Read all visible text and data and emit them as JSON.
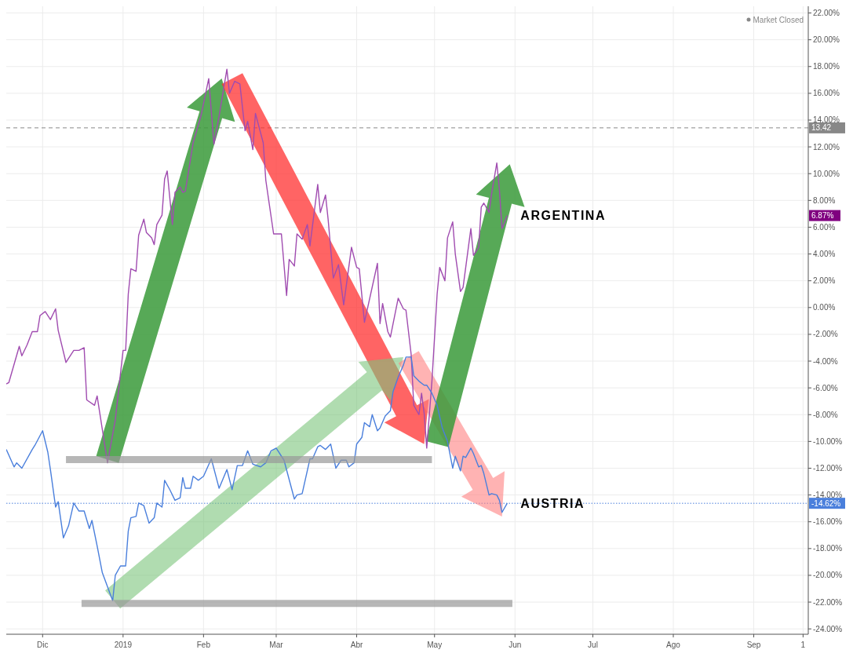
{
  "chart_data": {
    "type": "line",
    "grid": true,
    "marker": "none",
    "xlim": [
      "2018-11-17",
      "2019-09-22"
    ],
    "xticks": [
      {
        "value": "2018-12-01",
        "label": "Dic"
      },
      {
        "value": "2019-01-01",
        "label": "2019"
      },
      {
        "value": "2019-02-01",
        "label": "Feb"
      },
      {
        "value": "2019-03-01",
        "label": "Mar"
      },
      {
        "value": "2019-04-01",
        "label": "Abr"
      },
      {
        "value": "2019-05-01",
        "label": "May"
      },
      {
        "value": "2019-06-01",
        "label": "Jun"
      },
      {
        "value": "2019-07-01",
        "label": "Jul"
      },
      {
        "value": "2019-08-01",
        "label": "Ago"
      },
      {
        "value": "2019-09-01",
        "label": "Sep"
      },
      {
        "value": "2019-09-20",
        "label": "1"
      }
    ],
    "ylim": [
      -24.4,
      22.5
    ],
    "yticks": [
      {
        "value": 22,
        "label": "22.00%"
      },
      {
        "value": 20,
        "label": "20.00%"
      },
      {
        "value": 18,
        "label": "18.00%"
      },
      {
        "value": 16,
        "label": "16.00%"
      },
      {
        "value": 14,
        "label": "14.00%"
      },
      {
        "value": 12,
        "label": "12.00%"
      },
      {
        "value": 10,
        "label": "10.00%"
      },
      {
        "value": 8,
        "label": "8.00%"
      },
      {
        "value": 6,
        "label": "6.00%"
      },
      {
        "value": 4,
        "label": "4.00%"
      },
      {
        "value": 2,
        "label": "2.00%"
      },
      {
        "value": 0,
        "label": "0.00%"
      },
      {
        "value": -2,
        "label": "-2.00%"
      },
      {
        "value": -4,
        "label": "-4.00%"
      },
      {
        "value": -6,
        "label": "-6.00%"
      },
      {
        "value": -8,
        "label": "-8.00%"
      },
      {
        "value": -10,
        "label": "-10.00%"
      },
      {
        "value": -12,
        "label": "-12.00%"
      },
      {
        "value": -14,
        "label": "-14.00%"
      },
      {
        "value": -16,
        "label": "-16.00%"
      },
      {
        "value": -18,
        "label": "-18.00%"
      },
      {
        "value": -20,
        "label": "-20.00%"
      },
      {
        "value": -22,
        "label": "-22.00%"
      },
      {
        "value": -24,
        "label": "-24.00%"
      }
    ],
    "series": [
      {
        "name": "ARGENTINA",
        "color": "#a04cb0",
        "x": [
          "2018-11-17",
          "2018-11-18",
          "2018-11-22",
          "2018-11-23",
          "2018-11-25",
          "2018-11-27",
          "2018-11-29",
          "2018-11-30",
          "2018-12-02",
          "2018-12-04",
          "2018-12-06",
          "2018-12-07",
          "2018-12-10",
          "2018-12-13",
          "2018-12-15",
          "2018-12-17",
          "2018-12-18",
          "2018-12-21",
          "2018-12-22",
          "2018-12-26",
          "2018-12-29",
          "2019-01-01",
          "2019-01-02",
          "2019-01-03",
          "2019-01-04",
          "2019-01-06",
          "2019-01-07",
          "2019-01-09",
          "2019-01-10",
          "2019-01-12",
          "2019-01-13",
          "2019-01-14",
          "2019-01-16",
          "2019-01-17",
          "2019-01-18",
          "2019-01-20",
          "2019-01-21",
          "2019-01-23",
          "2019-01-24",
          "2019-01-25",
          "2019-01-28",
          "2019-01-31",
          "2019-02-03",
          "2019-02-05",
          "2019-02-07",
          "2019-02-10",
          "2019-02-11",
          "2019-02-13",
          "2019-02-15",
          "2019-02-17",
          "2019-02-18",
          "2019-02-20",
          "2019-02-21",
          "2019-02-24",
          "2019-02-25",
          "2019-02-28",
          "2019-03-03",
          "2019-03-05",
          "2019-03-06",
          "2019-03-08",
          "2019-03-09",
          "2019-03-11",
          "2019-03-13",
          "2019-03-14",
          "2019-03-17",
          "2019-03-18",
          "2019-03-20",
          "2019-03-21",
          "2019-03-23",
          "2019-03-25",
          "2019-03-27",
          "2019-03-30",
          "2019-04-01",
          "2019-04-02",
          "2019-04-04",
          "2019-04-09",
          "2019-04-10",
          "2019-04-11",
          "2019-04-13",
          "2019-04-14",
          "2019-04-17",
          "2019-04-19",
          "2019-04-20",
          "2019-04-22",
          "2019-04-23",
          "2019-04-25",
          "2019-04-26",
          "2019-04-27",
          "2019-04-28",
          "2019-04-30",
          "2019-05-02",
          "2019-05-03",
          "2019-05-05",
          "2019-05-06",
          "2019-05-08",
          "2019-05-09",
          "2019-05-11",
          "2019-05-12",
          "2019-05-15",
          "2019-05-16",
          "2019-05-18",
          "2019-05-19",
          "2019-05-20",
          "2019-05-22",
          "2019-05-23",
          "2019-05-25",
          "2019-05-26",
          "2019-05-27",
          "2019-05-29"
        ],
        "values": [
          -5.7,
          -5.6,
          -2.9,
          -3.6,
          -2.8,
          -1.8,
          -1.8,
          -0.6,
          -0.3,
          -0.9,
          -0.1,
          -1.7,
          -4.1,
          -3.2,
          -3.2,
          -3.0,
          -6.9,
          -7.3,
          -6.6,
          -11.6,
          -8.4,
          -3.2,
          -3.2,
          1.0,
          2.9,
          2.7,
          5.4,
          6.6,
          5.6,
          5.2,
          4.7,
          6.2,
          6.9,
          9.6,
          10.2,
          6.2,
          8.6,
          9.0,
          8.6,
          8.7,
          12.3,
          14.3,
          17.1,
          12.2,
          14.3,
          17.8,
          16.0,
          16.9,
          16.7,
          13.2,
          13.9,
          11.8,
          14.5,
          12.3,
          9.5,
          5.5,
          5.5,
          0.9,
          3.6,
          3.1,
          5.5,
          5.1,
          6.2,
          4.6,
          9.2,
          7.1,
          8.4,
          6.6,
          2.2,
          3.2,
          0.2,
          4.5,
          3.0,
          2.9,
          -1.1,
          3.3,
          -1.2,
          0.3,
          -1.8,
          -2.2,
          0.7,
          -0.1,
          -0.2,
          -3.5,
          -7.3,
          -8.0,
          -6.4,
          -7.9,
          -10.5,
          -5.5,
          1.0,
          3.0,
          2.0,
          5.2,
          6.4,
          4.0,
          1.2,
          1.5,
          5.9,
          3.9,
          4.5,
          7.5,
          7.8,
          7.1,
          8.5,
          10.8,
          8.8,
          5.9,
          6.87
        ]
      },
      {
        "name": "AUSTRIA",
        "color": "#4a7fdc",
        "x": [
          "2018-11-17",
          "2018-11-20",
          "2018-11-21",
          "2018-11-23",
          "2018-11-27",
          "2018-11-28",
          "2018-12-01",
          "2018-12-03",
          "2018-12-04",
          "2018-12-06",
          "2018-12-07",
          "2018-12-09",
          "2018-12-11",
          "2018-12-13",
          "2018-12-15",
          "2018-12-17",
          "2018-12-19",
          "2018-12-20",
          "2018-12-22",
          "2018-12-24",
          "2018-12-28",
          "2018-12-29",
          "2018-12-31",
          "2019-01-02",
          "2019-01-03",
          "2019-01-04",
          "2019-01-06",
          "2019-01-07",
          "2019-01-09",
          "2019-01-11",
          "2019-01-13",
          "2019-01-14",
          "2019-01-16",
          "2019-01-17",
          "2019-01-19",
          "2019-01-21",
          "2019-01-23",
          "2019-01-24",
          "2019-01-25",
          "2019-01-27",
          "2019-01-28",
          "2019-01-30",
          "2019-02-01",
          "2019-02-04",
          "2019-02-07",
          "2019-02-10",
          "2019-02-12",
          "2019-02-14",
          "2019-02-16",
          "2019-02-18",
          "2019-02-20",
          "2019-02-23",
          "2019-02-25",
          "2019-02-27",
          "2019-03-01",
          "2019-03-04",
          "2019-03-08",
          "2019-03-09",
          "2019-03-11",
          "2019-03-14",
          "2019-03-15",
          "2019-03-17",
          "2019-03-18",
          "2019-03-20",
          "2019-03-22",
          "2019-03-24",
          "2019-03-26",
          "2019-03-28",
          "2019-03-29",
          "2019-03-31",
          "2019-04-01",
          "2019-04-03",
          "2019-04-04",
          "2019-04-06",
          "2019-04-07",
          "2019-04-09",
          "2019-04-10",
          "2019-04-12",
          "2019-04-14",
          "2019-04-15",
          "2019-04-17",
          "2019-04-19",
          "2019-04-20",
          "2019-04-22",
          "2019-04-23",
          "2019-04-25",
          "2019-04-27",
          "2019-04-28",
          "2019-04-30",
          "2019-05-02",
          "2019-05-04",
          "2019-05-06",
          "2019-05-08",
          "2019-05-09",
          "2019-05-11",
          "2019-05-12",
          "2019-05-13",
          "2019-05-15",
          "2019-05-16",
          "2019-05-18",
          "2019-05-19",
          "2019-05-20",
          "2019-05-22",
          "2019-05-23",
          "2019-05-25",
          "2019-05-26",
          "2019-05-27",
          "2019-05-29"
        ],
        "values": [
          -10.6,
          -11.9,
          -11.6,
          -12.0,
          -10.6,
          -10.3,
          -9.2,
          -10.8,
          -12.1,
          -14.9,
          -14.5,
          -17.2,
          -16.3,
          -14.6,
          -15.2,
          -15.2,
          -16.5,
          -15.9,
          -17.8,
          -19.8,
          -21.9,
          -20.0,
          -19.3,
          -19.3,
          -16.7,
          -15.7,
          -15.6,
          -14.6,
          -14.8,
          -16.1,
          -15.7,
          -14.6,
          -14.9,
          -12.9,
          -13.6,
          -14.4,
          -14.2,
          -12.7,
          -13.5,
          -13.5,
          -12.6,
          -12.9,
          -12.6,
          -11.3,
          -13.5,
          -12.1,
          -13.6,
          -11.8,
          -11.8,
          -10.7,
          -11.7,
          -11.9,
          -11.6,
          -10.7,
          -10.5,
          -11.4,
          -14.3,
          -14.0,
          -13.9,
          -11.3,
          -11.3,
          -10.4,
          -10.3,
          -10.6,
          -10.2,
          -12.0,
          -11.4,
          -11.4,
          -11.9,
          -11.6,
          -10.2,
          -9.7,
          -8.6,
          -8.9,
          -8.0,
          -9.2,
          -9.0,
          -8.1,
          -7.7,
          -6.3,
          -5.2,
          -4.3,
          -3.7,
          -3.7,
          -5.1,
          -5.5,
          -5.8,
          -5.8,
          -6.4,
          -7.3,
          -9.0,
          -10.0,
          -12.0,
          -11.1,
          -12.2,
          -11.1,
          -11.2,
          -10.5,
          -10.9,
          -11.9,
          -11.8,
          -12.4,
          -14.0,
          -13.9,
          -14.0,
          -14.4,
          -15.3,
          -14.62
        ]
      },
      {
        "color": "#999999",
        "x": [
          "2018-12-10",
          "2019-04-30"
        ],
        "values": [
          -11.35,
          -11.35
        ]
      },
      {
        "color": "#999999",
        "x": [
          "2018-12-16",
          "2019-05-31"
        ],
        "values": [
          -22.1,
          -22.1
        ]
      }
    ],
    "ref_lines": [
      {
        "axis": "y",
        "value": 13.42,
        "label": "13.42",
        "color": "#888888",
        "line_style": "dashed"
      },
      {
        "axis": "y",
        "value": -14.62,
        "label": "-14.62%",
        "color": "#4a7fdc",
        "line_style": "dotted"
      }
    ],
    "annotations": [
      "Market Closed",
      "6.87%"
    ]
  }
}
